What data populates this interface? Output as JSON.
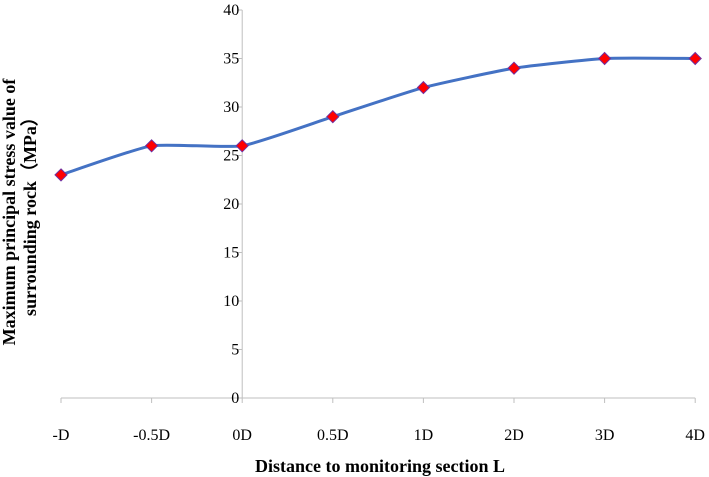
{
  "chart_data": {
    "type": "line",
    "categories": [
      "-D",
      "-0.5D",
      "0D",
      "0.5D",
      "1D",
      "2D",
      "3D",
      "4D"
    ],
    "series": [
      {
        "values": [
          23,
          26,
          26,
          29,
          32,
          34,
          35,
          35
        ]
      }
    ],
    "xlabel": "Distance to monitoring section L",
    "ylabel_line1": "Maximum principal stress value of",
    "ylabel_line2": "surrounding rock（MPa）",
    "ylim": [
      0,
      40
    ],
    "yticks": [
      0,
      5,
      10,
      15,
      20,
      25,
      30,
      35,
      40
    ],
    "grid": false,
    "legend": "none",
    "y_axis_crosses_at_category": "0D"
  },
  "colors": {
    "line": "#4472c4",
    "marker_fill": "#ff0000",
    "marker_stroke": "#7030a0",
    "axis": "#bfbfbf"
  }
}
